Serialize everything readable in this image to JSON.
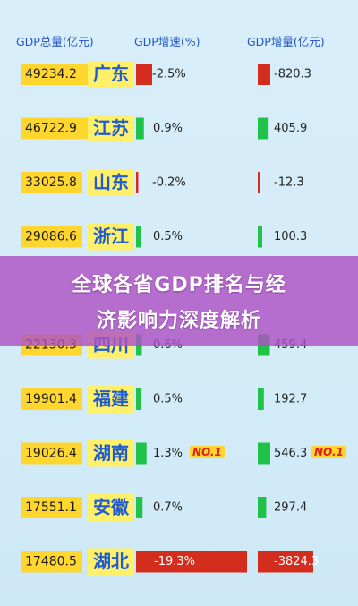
{
  "chart_data": {
    "type": "table",
    "columns": [
      "GDP总量(亿元)",
      "",
      "GDP增速(%)",
      "GDP增量(亿元)"
    ],
    "rows": [
      {
        "gdp": "49234.2",
        "gdp_value": 49234.2,
        "province": "广东",
        "growth": "-2.5%",
        "growth_value": -2.5,
        "increase": "-820.3",
        "increase_value": -820.3
      },
      {
        "gdp": "46722.9",
        "gdp_value": 46722.9,
        "province": "江苏",
        "growth": "0.9%",
        "growth_value": 0.9,
        "increase": "405.9",
        "increase_value": 405.9
      },
      {
        "gdp": "33025.8",
        "gdp_value": 33025.8,
        "province": "山东",
        "growth": "-0.2%",
        "growth_value": -0.2,
        "increase": "-12.3",
        "increase_value": -12.3
      },
      {
        "gdp": "29086.6",
        "gdp_value": 29086.6,
        "province": "浙江",
        "growth": "0.5%",
        "growth_value": 0.5,
        "increase": "100.3",
        "increase_value": 100.3
      },
      {
        "gdp": "",
        "gdp_value": null,
        "province": "",
        "growth": "",
        "growth_value": null,
        "increase": "",
        "increase_value": null
      },
      {
        "gdp": "22130.3",
        "gdp_value": 22130.3,
        "province": "四川",
        "growth": "0.6%",
        "growth_value": 0.6,
        "increase": "459.4",
        "increase_value": 459.4
      },
      {
        "gdp": "19901.4",
        "gdp_value": 19901.4,
        "province": "福建",
        "growth": "0.5%",
        "growth_value": 0.5,
        "increase": "192.7",
        "increase_value": 192.7
      },
      {
        "gdp": "19026.4",
        "gdp_value": 19026.4,
        "province": "湖南",
        "growth": "1.3%",
        "growth_value": 1.3,
        "increase": "546.3",
        "increase_value": 546.3,
        "growth_note": "NO.1",
        "increase_note": "NO.1"
      },
      {
        "gdp": "17551.1",
        "gdp_value": 17551.1,
        "province": "安徽",
        "growth": "0.7%",
        "growth_value": 0.7,
        "increase": "297.4",
        "increase_value": 297.4
      },
      {
        "gdp": "17480.5",
        "gdp_value": 17480.5,
        "province": "湖北",
        "growth": "-19.3%",
        "growth_value": -19.3,
        "increase": "-3824.3",
        "increase_value": -3824.3
      }
    ],
    "colors": {
      "positive": "#21c24a",
      "negative": "#d42d1e",
      "highlight": "#ffd62e",
      "province_text": "#1f5bd1"
    }
  },
  "banner": {
    "line1": "全球各省GDP排名与经",
    "line2": "济影响力深度解析"
  }
}
